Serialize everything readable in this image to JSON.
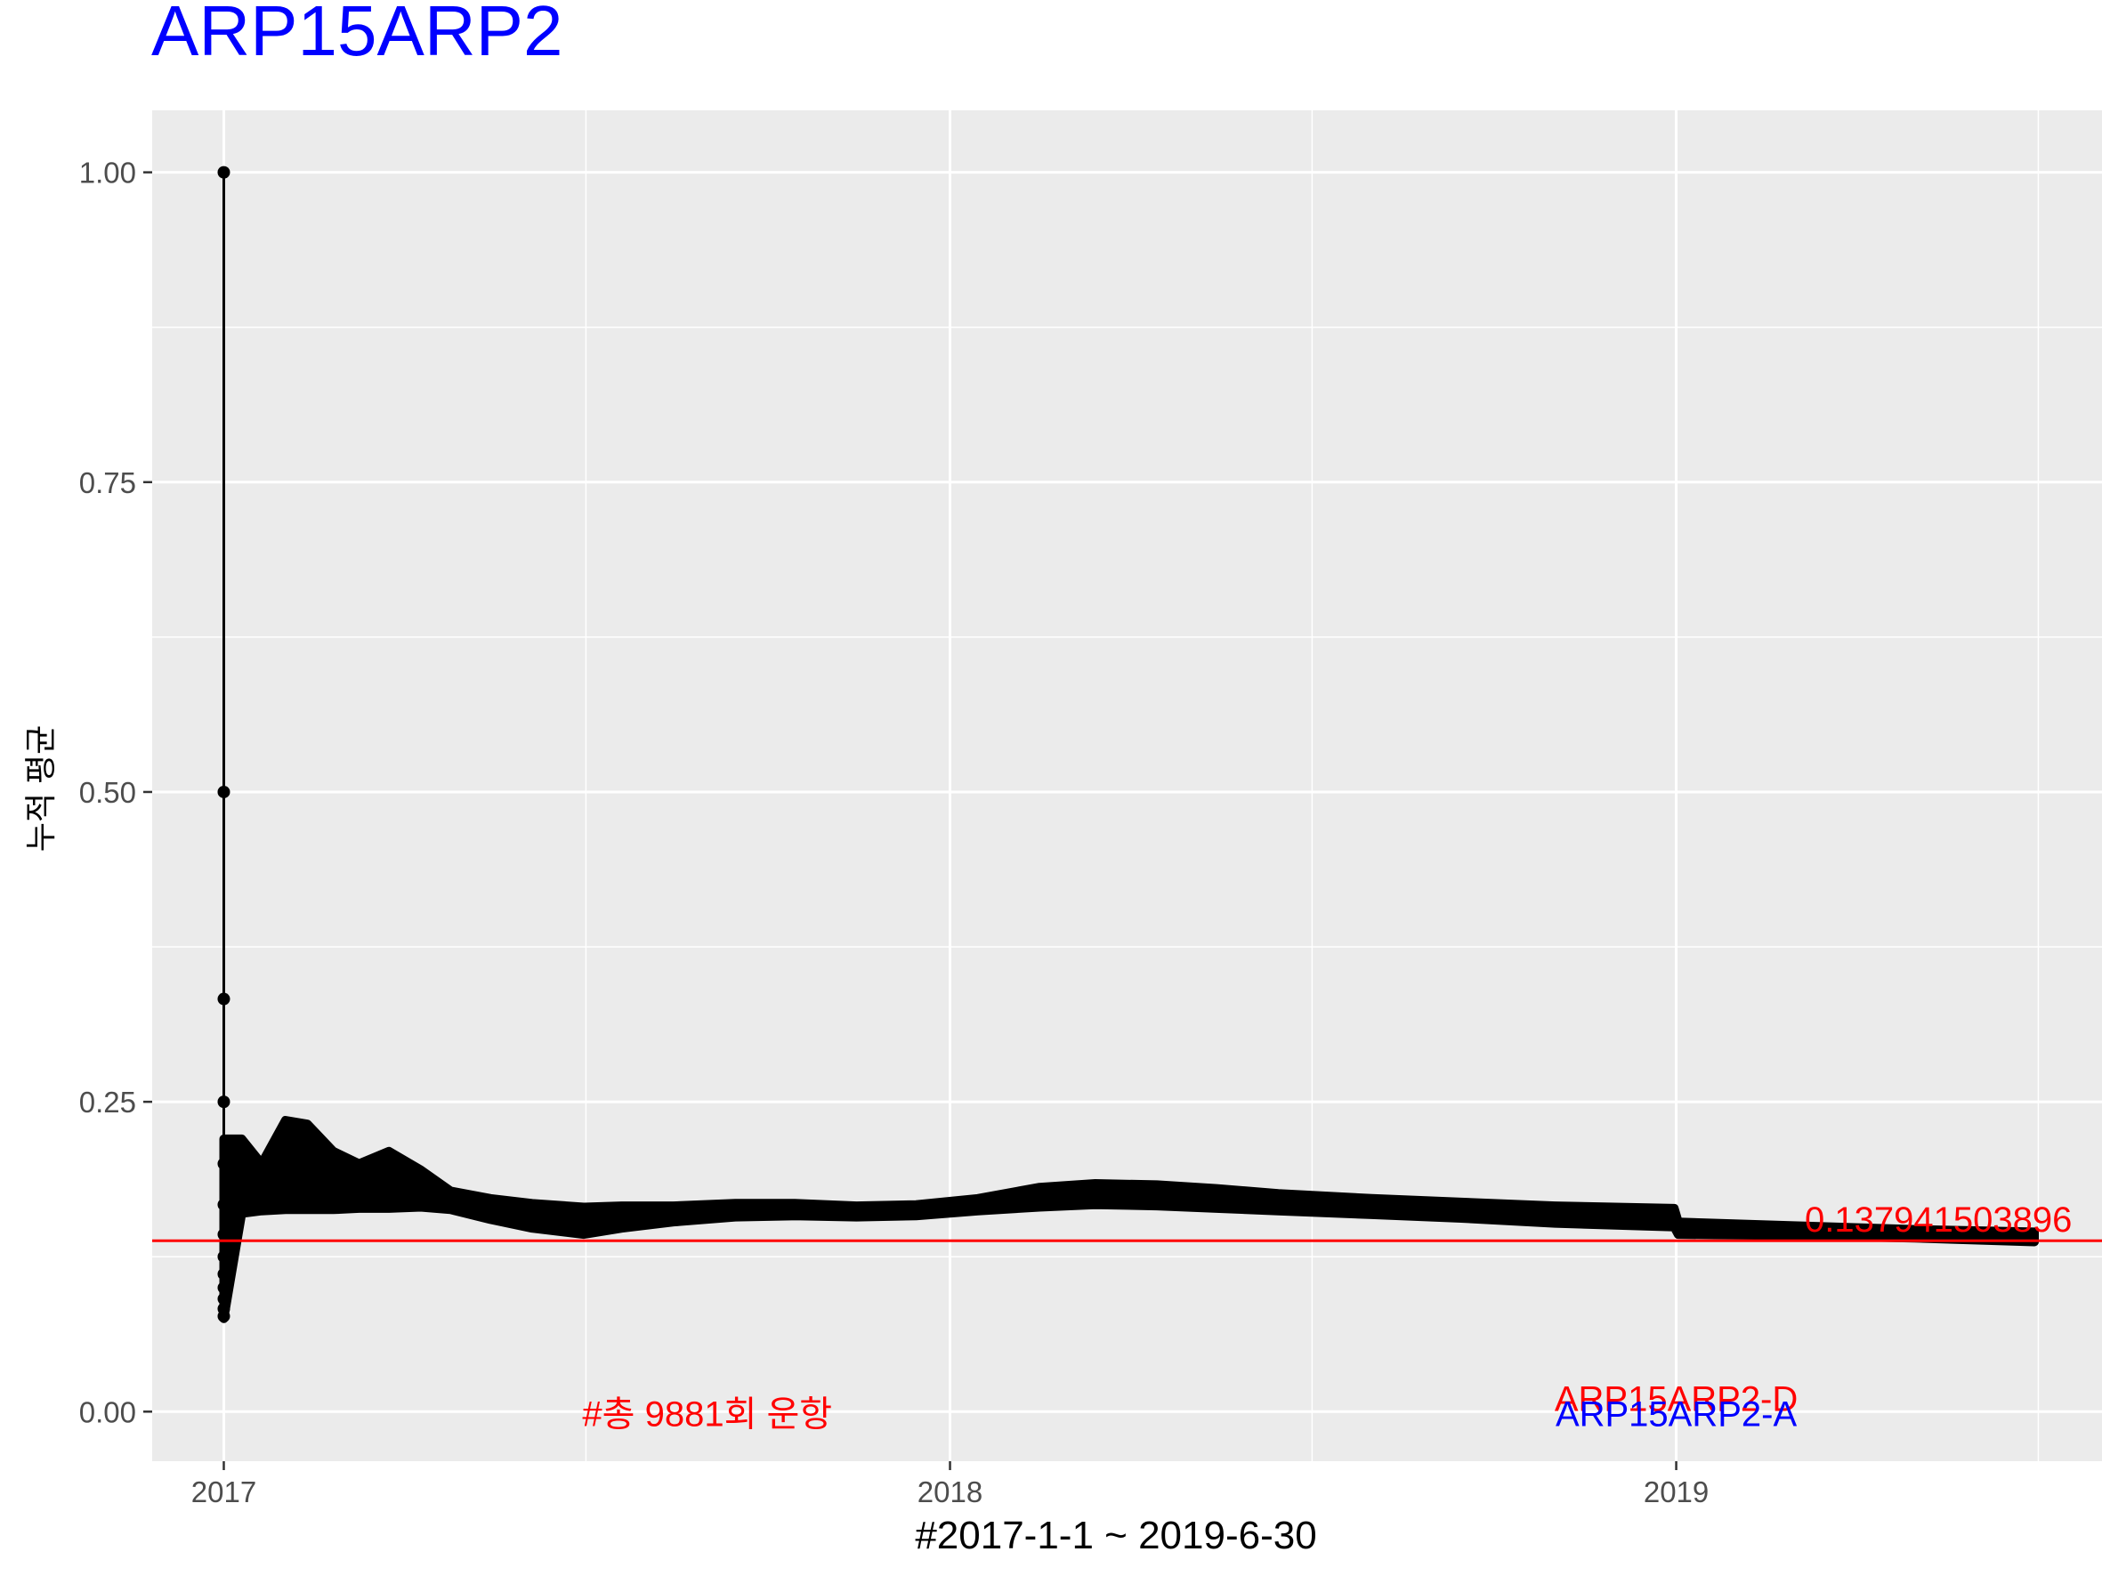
{
  "chart_data": {
    "type": "line",
    "title": "ARP15ARP2",
    "xlabel": "#2017-1-1 ~ 2019-6-30",
    "ylabel": "누적 평균",
    "x_ticks": [
      "2017",
      "2018",
      "2019"
    ],
    "y_ticks": [
      "0.00",
      "0.25",
      "0.50",
      "0.75",
      "1.00"
    ],
    "xlim": [
      "2016-11-26",
      "2019-08-03"
    ],
    "ylim": [
      -0.04,
      1.05
    ],
    "grid": true,
    "reference_line": {
      "value": 0.137941503896,
      "label": "0.137941503896",
      "color": "#ff0000"
    },
    "annotations": [
      {
        "text": "#총 9881회 운항",
        "x": "2017-09-01",
        "y": 0.0,
        "color": "#ff0000"
      },
      {
        "text": "ARP15ARP2-D",
        "x": "2019-01-01",
        "y": 0.012,
        "color": "#ff0000"
      },
      {
        "text": "ARP15ARP2-A",
        "x": "2019-01-01",
        "y": 0.0,
        "color": "#0000ff"
      }
    ],
    "early_points": [
      {
        "x": "2017-01-01",
        "y": 1.0
      },
      {
        "x": "2017-01-01",
        "y": 0.5
      },
      {
        "x": "2017-01-01",
        "y": 0.333
      },
      {
        "x": "2017-01-01",
        "y": 0.25
      },
      {
        "x": "2017-01-01",
        "y": 0.2
      },
      {
        "x": "2017-01-01",
        "y": 0.167
      },
      {
        "x": "2017-01-01",
        "y": 0.143
      },
      {
        "x": "2017-01-01",
        "y": 0.125
      },
      {
        "x": "2017-01-01",
        "y": 0.111
      },
      {
        "x": "2017-01-01",
        "y": 0.1
      },
      {
        "x": "2017-01-01",
        "y": 0.091
      },
      {
        "x": "2017-01-01",
        "y": 0.083
      },
      {
        "x": "2017-01-01",
        "y": 0.077
      }
    ],
    "series": [
      {
        "band": [
          {
            "x": "2017-01-01",
            "ymin": 0.075,
            "ymax": 0.22
          },
          {
            "x": "2017-01-10",
            "ymin": 0.16,
            "ymax": 0.22
          },
          {
            "x": "2017-01-20",
            "ymin": 0.162,
            "ymax": 0.2
          },
          {
            "x": "2017-02-01",
            "ymin": 0.163,
            "ymax": 0.235
          },
          {
            "x": "2017-02-12",
            "ymin": 0.163,
            "ymax": 0.232
          },
          {
            "x": "2017-02-25",
            "ymin": 0.163,
            "ymax": 0.21
          },
          {
            "x": "2017-03-10",
            "ymin": 0.164,
            "ymax": 0.2
          },
          {
            "x": "2017-03-25",
            "ymin": 0.164,
            "ymax": 0.21
          },
          {
            "x": "2017-04-10",
            "ymin": 0.165,
            "ymax": 0.195
          },
          {
            "x": "2017-04-25",
            "ymin": 0.163,
            "ymax": 0.178
          },
          {
            "x": "2017-05-15",
            "ymin": 0.155,
            "ymax": 0.172
          },
          {
            "x": "2017-06-05",
            "ymin": 0.148,
            "ymax": 0.168
          },
          {
            "x": "2017-07-01",
            "ymin": 0.143,
            "ymax": 0.165
          },
          {
            "x": "2017-07-20",
            "ymin": 0.148,
            "ymax": 0.166
          },
          {
            "x": "2017-08-15",
            "ymin": 0.153,
            "ymax": 0.166
          },
          {
            "x": "2017-09-15",
            "ymin": 0.157,
            "ymax": 0.168
          },
          {
            "x": "2017-10-15",
            "ymin": 0.158,
            "ymax": 0.168
          },
          {
            "x": "2017-11-15",
            "ymin": 0.157,
            "ymax": 0.166
          },
          {
            "x": "2017-12-15",
            "ymin": 0.158,
            "ymax": 0.167
          },
          {
            "x": "2018-01-15",
            "ymin": 0.162,
            "ymax": 0.172
          },
          {
            "x": "2018-02-15",
            "ymin": 0.165,
            "ymax": 0.181
          },
          {
            "x": "2018-03-15",
            "ymin": 0.167,
            "ymax": 0.184
          },
          {
            "x": "2018-04-15",
            "ymin": 0.166,
            "ymax": 0.183
          },
          {
            "x": "2018-05-15",
            "ymin": 0.164,
            "ymax": 0.18
          },
          {
            "x": "2018-06-15",
            "ymin": 0.162,
            "ymax": 0.176
          },
          {
            "x": "2018-08-01",
            "ymin": 0.159,
            "ymax": 0.172
          },
          {
            "x": "2018-09-15",
            "ymin": 0.156,
            "ymax": 0.169
          },
          {
            "x": "2018-11-01",
            "ymin": 0.152,
            "ymax": 0.166
          },
          {
            "x": "2018-12-31",
            "ymin": 0.149,
            "ymax": 0.164
          },
          {
            "x": "2019-01-02",
            "ymin": 0.143,
            "ymax": 0.153
          },
          {
            "x": "2019-03-01",
            "ymin": 0.142,
            "ymax": 0.15
          },
          {
            "x": "2019-05-01",
            "ymin": 0.14,
            "ymax": 0.147
          },
          {
            "x": "2019-06-30",
            "ymin": 0.137,
            "ymax": 0.145
          }
        ]
      }
    ]
  },
  "colors": {
    "panel": "#ebebeb",
    "grid": "#ffffff",
    "data": "#000000",
    "title": "#0000ff",
    "reference": "#ff0000",
    "axis_text": "#4d4d4d"
  }
}
